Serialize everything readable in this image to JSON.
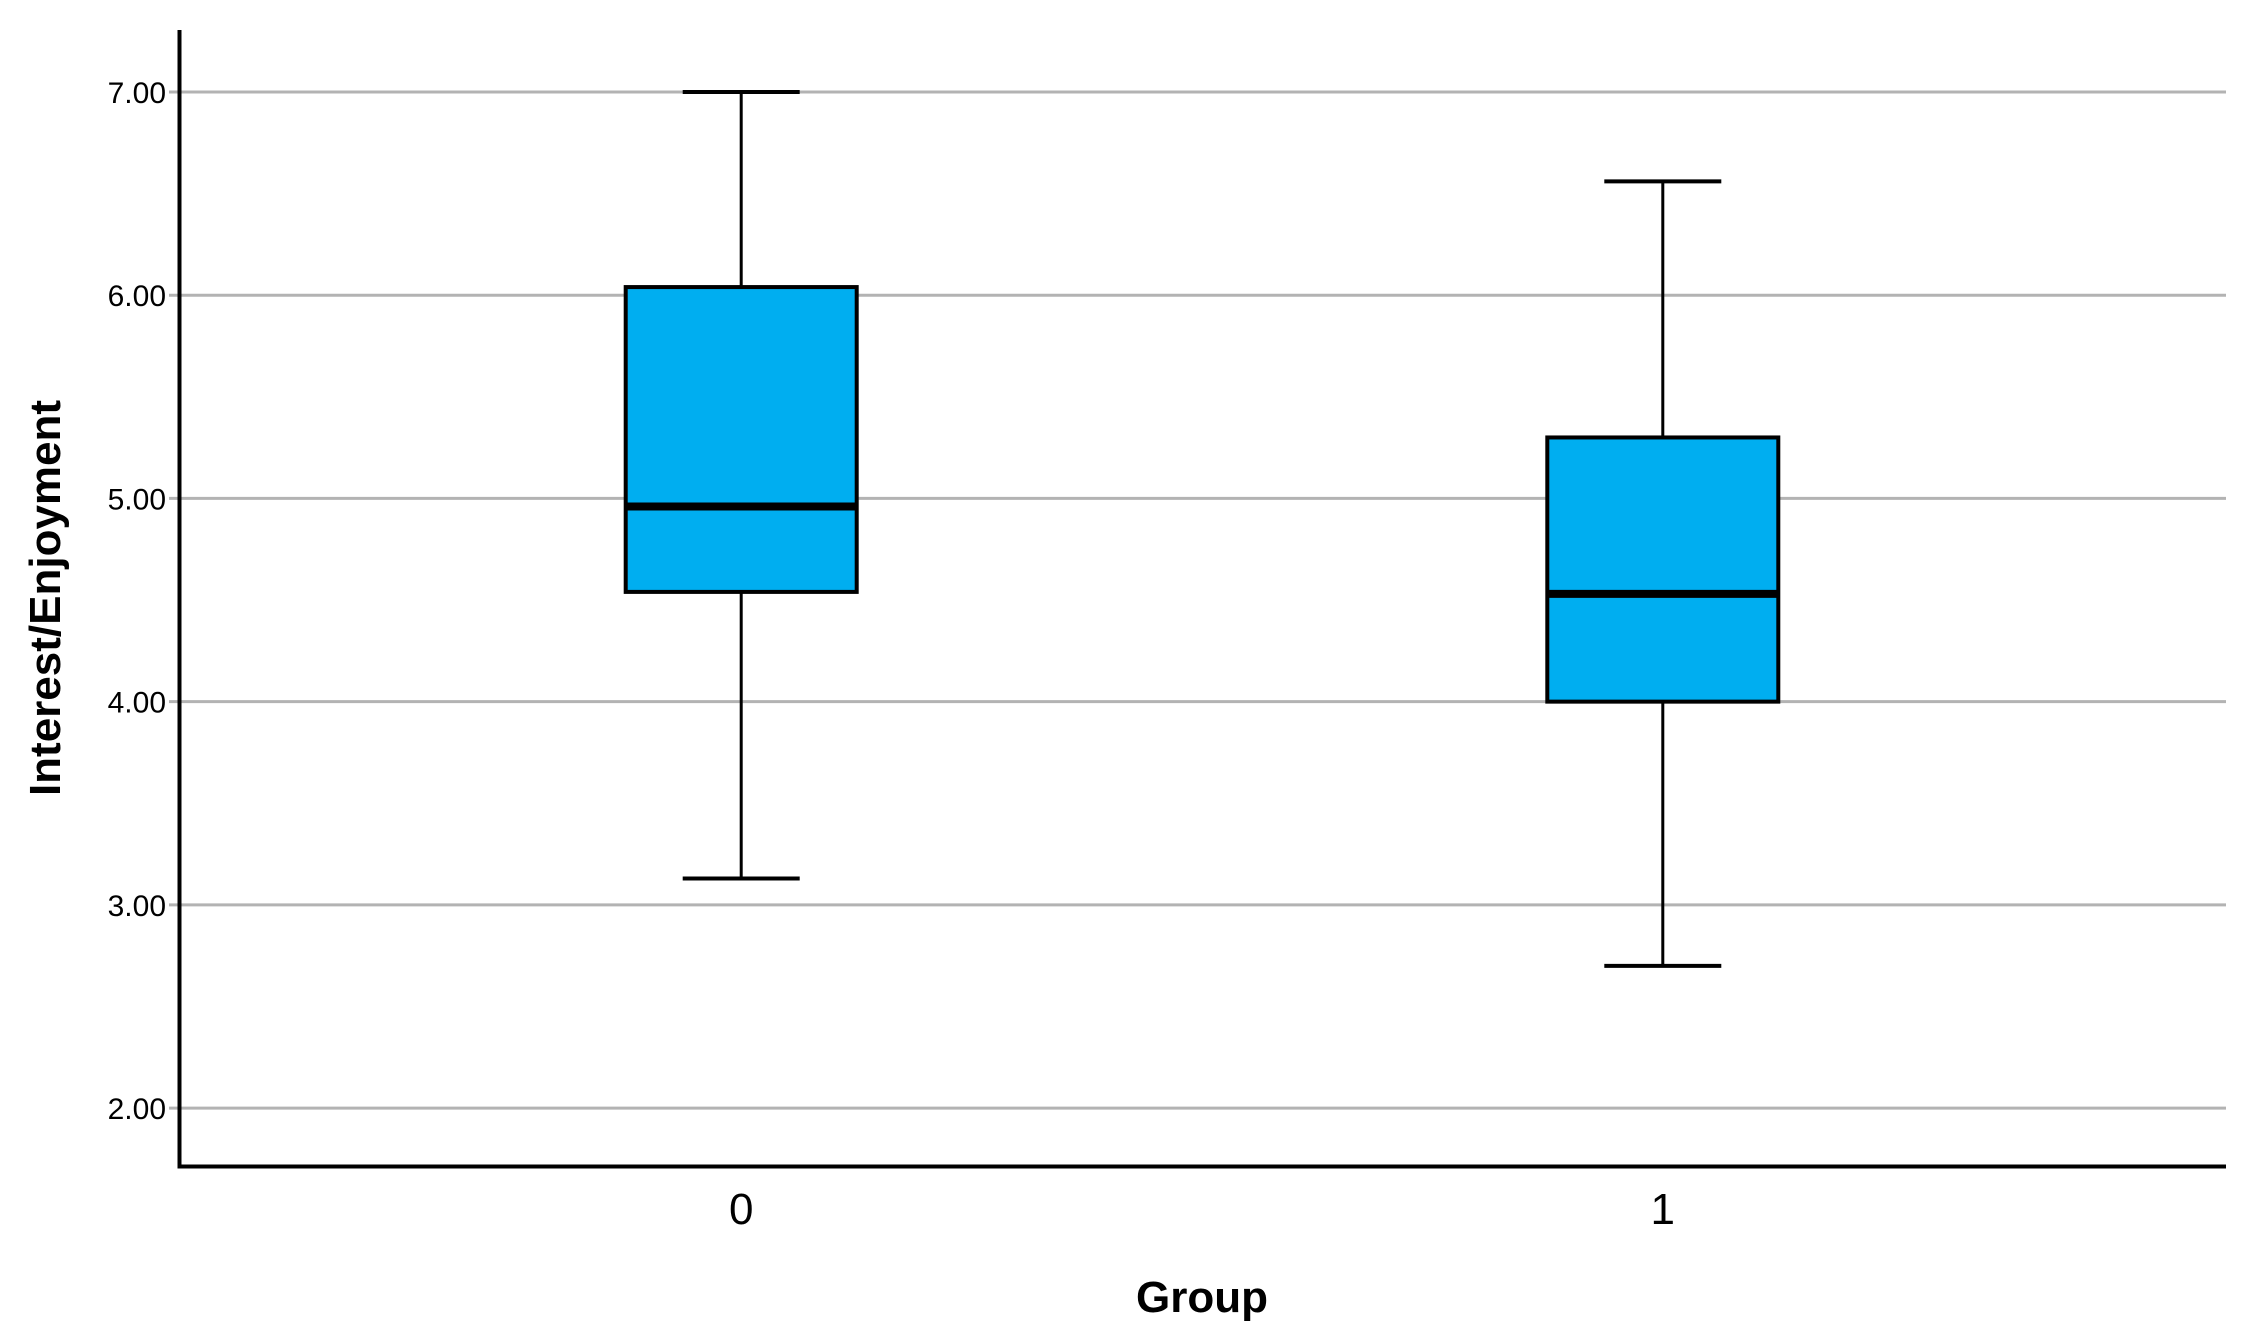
{
  "figure": {
    "background": "#ffffff"
  },
  "chart_data": {
    "type": "boxplot",
    "title": "",
    "xlabel": "Group",
    "ylabel": "Interest/Enjoyment",
    "categories": [
      "0",
      "1"
    ],
    "series": [
      {
        "name": "Group 0",
        "min": 3.13,
        "q1": 4.54,
        "median": 4.96,
        "q3": 6.04,
        "max": 7.0
      },
      {
        "name": "Group 1",
        "min": 2.7,
        "q1": 4.0,
        "median": 4.53,
        "q3": 5.3,
        "max": 6.56
      }
    ],
    "y_ticks": [
      {
        "value": 7,
        "label": "7.00"
      },
      {
        "value": 6,
        "label": "6.00"
      },
      {
        "value": 5,
        "label": "5.00"
      },
      {
        "value": 4,
        "label": "4.00"
      },
      {
        "value": 3,
        "label": "3.00"
      },
      {
        "value": 2,
        "label": "2.00"
      }
    ],
    "ylim": [
      1.715,
      7.305
    ],
    "grid": "horizontal",
    "legend": "none",
    "colors": {
      "box_fill": "#00AEF0",
      "box_border": "#000000",
      "median": "#000000",
      "whisker": "#000000",
      "gridline": "#b3b3b3",
      "axis": "#000000",
      "text": "#000000"
    }
  }
}
